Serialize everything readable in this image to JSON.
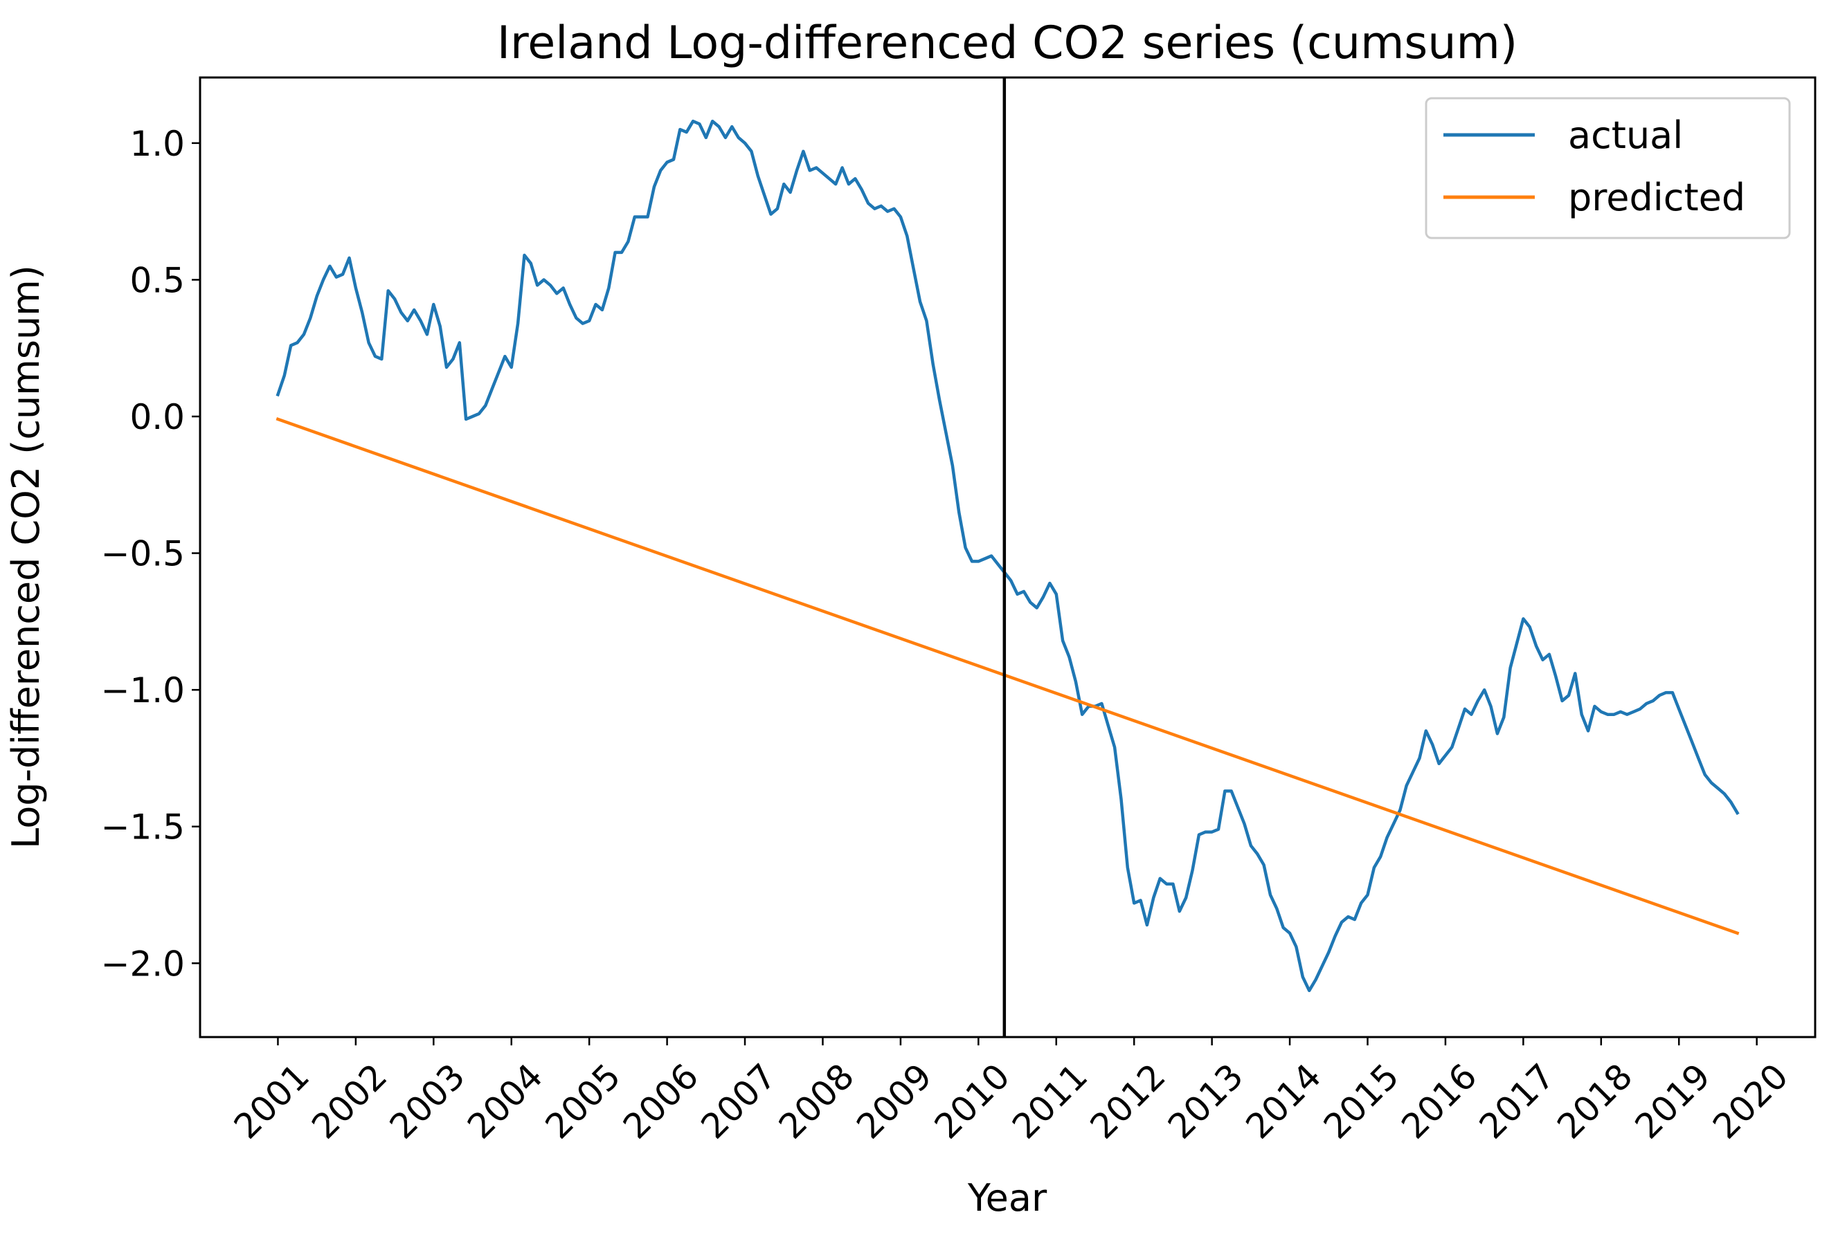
{
  "chart_data": {
    "type": "line",
    "title": "Ireland Log-differenced CO2 series (cumsum)",
    "xlabel": "Year",
    "ylabel": "Log-differenced CO2 (cumsum)",
    "xlim": [
      "2000-01",
      "2020-10"
    ],
    "ylim": [
      -2.27,
      1.24
    ],
    "x_ticks": [
      "2001",
      "2002",
      "2003",
      "2004",
      "2005",
      "2006",
      "2007",
      "2008",
      "2009",
      "2010",
      "2011",
      "2012",
      "2013",
      "2014",
      "2015",
      "2016",
      "2017",
      "2018",
      "2019",
      "2020"
    ],
    "y_ticks": [
      {
        "value": 1.0,
        "label": "1.0"
      },
      {
        "value": 0.5,
        "label": "0.5"
      },
      {
        "value": 0.0,
        "label": "0.0"
      },
      {
        "value": -0.5,
        "label": "−0.5"
      },
      {
        "value": -1.0,
        "label": "−1.0"
      },
      {
        "value": -1.5,
        "label": "−1.5"
      },
      {
        "value": -2.0,
        "label": "−2.0"
      }
    ],
    "grid": false,
    "legend_position": "top-right",
    "vertical_line": {
      "x": "2010-05"
    },
    "series": [
      {
        "name": "actual",
        "color": "#1f77b4",
        "points": [
          [
            "2001-01",
            0.08
          ],
          [
            "2001-02",
            0.15
          ],
          [
            "2001-03",
            0.26
          ],
          [
            "2001-04",
            0.27
          ],
          [
            "2001-05",
            0.3
          ],
          [
            "2001-06",
            0.36
          ],
          [
            "2001-07",
            0.44
          ],
          [
            "2001-08",
            0.5
          ],
          [
            "2001-09",
            0.55
          ],
          [
            "2001-10",
            0.51
          ],
          [
            "2001-11",
            0.52
          ],
          [
            "2001-12",
            0.58
          ],
          [
            "2002-01",
            0.47
          ],
          [
            "2002-02",
            0.38
          ],
          [
            "2002-03",
            0.27
          ],
          [
            "2002-04",
            0.22
          ],
          [
            "2002-05",
            0.21
          ],
          [
            "2002-06",
            0.46
          ],
          [
            "2002-07",
            0.43
          ],
          [
            "2002-08",
            0.38
          ],
          [
            "2002-09",
            0.35
          ],
          [
            "2002-10",
            0.39
          ],
          [
            "2002-11",
            0.35
          ],
          [
            "2002-12",
            0.3
          ],
          [
            "2003-01",
            0.41
          ],
          [
            "2003-02",
            0.33
          ],
          [
            "2003-03",
            0.18
          ],
          [
            "2003-04",
            0.21
          ],
          [
            "2003-05",
            0.27
          ],
          [
            "2003-06",
            -0.01
          ],
          [
            "2003-07",
            0.0
          ],
          [
            "2003-08",
            0.01
          ],
          [
            "2003-09",
            0.04
          ],
          [
            "2003-10",
            0.1
          ],
          [
            "2003-11",
            0.16
          ],
          [
            "2003-12",
            0.22
          ],
          [
            "2004-01",
            0.18
          ],
          [
            "2004-02",
            0.34
          ],
          [
            "2004-03",
            0.59
          ],
          [
            "2004-04",
            0.56
          ],
          [
            "2004-05",
            0.48
          ],
          [
            "2004-06",
            0.5
          ],
          [
            "2004-07",
            0.48
          ],
          [
            "2004-08",
            0.45
          ],
          [
            "2004-09",
            0.47
          ],
          [
            "2004-10",
            0.41
          ],
          [
            "2004-11",
            0.36
          ],
          [
            "2004-12",
            0.34
          ],
          [
            "2005-01",
            0.35
          ],
          [
            "2005-02",
            0.41
          ],
          [
            "2005-03",
            0.39
          ],
          [
            "2005-04",
            0.47
          ],
          [
            "2005-05",
            0.6
          ],
          [
            "2005-06",
            0.6
          ],
          [
            "2005-07",
            0.64
          ],
          [
            "2005-08",
            0.73
          ],
          [
            "2005-09",
            0.73
          ],
          [
            "2005-10",
            0.73
          ],
          [
            "2005-11",
            0.84
          ],
          [
            "2005-12",
            0.9
          ],
          [
            "2006-01",
            0.93
          ],
          [
            "2006-02",
            0.94
          ],
          [
            "2006-03",
            1.05
          ],
          [
            "2006-04",
            1.04
          ],
          [
            "2006-05",
            1.08
          ],
          [
            "2006-06",
            1.07
          ],
          [
            "2006-07",
            1.02
          ],
          [
            "2006-08",
            1.08
          ],
          [
            "2006-09",
            1.06
          ],
          [
            "2006-10",
            1.02
          ],
          [
            "2006-11",
            1.06
          ],
          [
            "2006-12",
            1.02
          ],
          [
            "2007-01",
            1.0
          ],
          [
            "2007-02",
            0.97
          ],
          [
            "2007-03",
            0.88
          ],
          [
            "2007-04",
            0.81
          ],
          [
            "2007-05",
            0.74
          ],
          [
            "2007-06",
            0.76
          ],
          [
            "2007-07",
            0.85
          ],
          [
            "2007-08",
            0.82
          ],
          [
            "2007-09",
            0.9
          ],
          [
            "2007-10",
            0.97
          ],
          [
            "2007-11",
            0.9
          ],
          [
            "2007-12",
            0.91
          ],
          [
            "2008-01",
            0.89
          ],
          [
            "2008-02",
            0.87
          ],
          [
            "2008-03",
            0.85
          ],
          [
            "2008-04",
            0.91
          ],
          [
            "2008-05",
            0.85
          ],
          [
            "2008-06",
            0.87
          ],
          [
            "2008-07",
            0.83
          ],
          [
            "2008-08",
            0.78
          ],
          [
            "2008-09",
            0.76
          ],
          [
            "2008-10",
            0.77
          ],
          [
            "2008-11",
            0.75
          ],
          [
            "2008-12",
            0.76
          ],
          [
            "2009-01",
            0.73
          ],
          [
            "2009-02",
            0.66
          ],
          [
            "2009-03",
            0.54
          ],
          [
            "2009-04",
            0.42
          ],
          [
            "2009-05",
            0.35
          ],
          [
            "2009-06",
            0.19
          ],
          [
            "2009-07",
            0.06
          ],
          [
            "2009-08",
            -0.06
          ],
          [
            "2009-09",
            -0.18
          ],
          [
            "2009-10",
            -0.35
          ],
          [
            "2009-11",
            -0.48
          ],
          [
            "2009-12",
            -0.53
          ],
          [
            "2010-01",
            -0.53
          ],
          [
            "2010-02",
            -0.52
          ],
          [
            "2010-03",
            -0.51
          ],
          [
            "2010-04",
            -0.54
          ],
          [
            "2010-05",
            -0.57
          ],
          [
            "2010-06",
            -0.6
          ],
          [
            "2010-07",
            -0.65
          ],
          [
            "2010-08",
            -0.64
          ],
          [
            "2010-09",
            -0.68
          ],
          [
            "2010-10",
            -0.7
          ],
          [
            "2010-11",
            -0.66
          ],
          [
            "2010-12",
            -0.61
          ],
          [
            "2011-01",
            -0.65
          ],
          [
            "2011-02",
            -0.82
          ],
          [
            "2011-03",
            -0.88
          ],
          [
            "2011-04",
            -0.97
          ],
          [
            "2011-05",
            -1.09
          ],
          [
            "2011-06",
            -1.06
          ],
          [
            "2011-07",
            -1.06
          ],
          [
            "2011-08",
            -1.05
          ],
          [
            "2011-09",
            -1.13
          ],
          [
            "2011-10",
            -1.21
          ],
          [
            "2011-11",
            -1.4
          ],
          [
            "2011-12",
            -1.65
          ],
          [
            "2012-01",
            -1.78
          ],
          [
            "2012-02",
            -1.77
          ],
          [
            "2012-03",
            -1.86
          ],
          [
            "2012-04",
            -1.76
          ],
          [
            "2012-05",
            -1.69
          ],
          [
            "2012-06",
            -1.71
          ],
          [
            "2012-07",
            -1.71
          ],
          [
            "2012-08",
            -1.81
          ],
          [
            "2012-09",
            -1.76
          ],
          [
            "2012-10",
            -1.66
          ],
          [
            "2012-11",
            -1.53
          ],
          [
            "2012-12",
            -1.52
          ],
          [
            "2013-01",
            -1.52
          ],
          [
            "2013-02",
            -1.51
          ],
          [
            "2013-03",
            -1.37
          ],
          [
            "2013-04",
            -1.37
          ],
          [
            "2013-05",
            -1.43
          ],
          [
            "2013-06",
            -1.49
          ],
          [
            "2013-07",
            -1.57
          ],
          [
            "2013-08",
            -1.6
          ],
          [
            "2013-09",
            -1.64
          ],
          [
            "2013-10",
            -1.75
          ],
          [
            "2013-11",
            -1.8
          ],
          [
            "2013-12",
            -1.87
          ],
          [
            "2014-01",
            -1.89
          ],
          [
            "2014-02",
            -1.94
          ],
          [
            "2014-03",
            -2.05
          ],
          [
            "2014-04",
            -2.1
          ],
          [
            "2014-05",
            -2.06
          ],
          [
            "2014-06",
            -2.01
          ],
          [
            "2014-07",
            -1.96
          ],
          [
            "2014-08",
            -1.9
          ],
          [
            "2014-09",
            -1.85
          ],
          [
            "2014-10",
            -1.83
          ],
          [
            "2014-11",
            -1.84
          ],
          [
            "2014-12",
            -1.78
          ],
          [
            "2015-01",
            -1.75
          ],
          [
            "2015-02",
            -1.65
          ],
          [
            "2015-03",
            -1.61
          ],
          [
            "2015-04",
            -1.54
          ],
          [
            "2015-05",
            -1.49
          ],
          [
            "2015-06",
            -1.44
          ],
          [
            "2015-07",
            -1.35
          ],
          [
            "2015-08",
            -1.3
          ],
          [
            "2015-09",
            -1.25
          ],
          [
            "2015-10",
            -1.15
          ],
          [
            "2015-11",
            -1.2
          ],
          [
            "2015-12",
            -1.27
          ],
          [
            "2016-01",
            -1.24
          ],
          [
            "2016-02",
            -1.21
          ],
          [
            "2016-03",
            -1.14
          ],
          [
            "2016-04",
            -1.07
          ],
          [
            "2016-05",
            -1.09
          ],
          [
            "2016-06",
            -1.04
          ],
          [
            "2016-07",
            -1.0
          ],
          [
            "2016-08",
            -1.06
          ],
          [
            "2016-09",
            -1.16
          ],
          [
            "2016-10",
            -1.1
          ],
          [
            "2016-11",
            -0.92
          ],
          [
            "2016-12",
            -0.83
          ],
          [
            "2017-01",
            -0.74
          ],
          [
            "2017-02",
            -0.77
          ],
          [
            "2017-03",
            -0.84
          ],
          [
            "2017-04",
            -0.89
          ],
          [
            "2017-05",
            -0.87
          ],
          [
            "2017-06",
            -0.95
          ],
          [
            "2017-07",
            -1.04
          ],
          [
            "2017-08",
            -1.02
          ],
          [
            "2017-09",
            -0.94
          ],
          [
            "2017-10",
            -1.09
          ],
          [
            "2017-11",
            -1.15
          ],
          [
            "2017-12",
            -1.06
          ],
          [
            "2018-01",
            -1.08
          ],
          [
            "2018-02",
            -1.09
          ],
          [
            "2018-03",
            -1.09
          ],
          [
            "2018-04",
            -1.08
          ],
          [
            "2018-05",
            -1.09
          ],
          [
            "2018-06",
            -1.08
          ],
          [
            "2018-07",
            -1.07
          ],
          [
            "2018-08",
            -1.05
          ],
          [
            "2018-09",
            -1.04
          ],
          [
            "2018-10",
            -1.02
          ],
          [
            "2018-11",
            -1.01
          ],
          [
            "2018-12",
            -1.01
          ],
          [
            "2019-01",
            -1.07
          ],
          [
            "2019-02",
            -1.13
          ],
          [
            "2019-03",
            -1.19
          ],
          [
            "2019-04",
            -1.25
          ],
          [
            "2019-05",
            -1.31
          ],
          [
            "2019-06",
            -1.34
          ],
          [
            "2019-07",
            -1.36
          ],
          [
            "2019-08",
            -1.38
          ],
          [
            "2019-09",
            -1.41
          ],
          [
            "2019-10",
            -1.45
          ]
        ]
      },
      {
        "name": "predicted",
        "color": "#ff7f0e",
        "points": [
          [
            "2001-01",
            -0.01
          ],
          [
            "2019-10",
            -1.89
          ]
        ]
      }
    ]
  }
}
